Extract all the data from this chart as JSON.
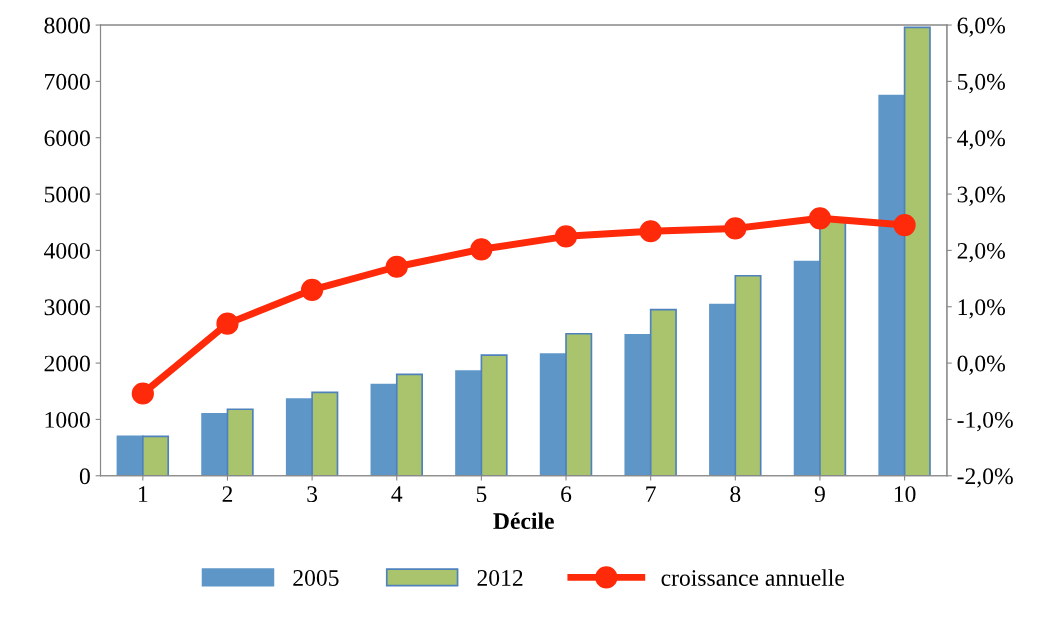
{
  "chart_data": {
    "type": "bar",
    "xlabel": "Décile",
    "categories": [
      "1",
      "2",
      "3",
      "4",
      "5",
      "6",
      "7",
      "8",
      "9",
      "10"
    ],
    "series": [
      {
        "name": "2005",
        "color": "#5f96c8",
        "values": [
          700,
          1100,
          1360,
          1620,
          1860,
          2160,
          2500,
          3040,
          3800,
          6750
        ]
      },
      {
        "name": "2012",
        "color": "#a9c46c",
        "values": [
          700,
          1180,
          1480,
          1800,
          2140,
          2520,
          2950,
          3550,
          4520,
          7960
        ]
      },
      {
        "name": "croissance annuelle",
        "type": "line",
        "axis": "y2",
        "color": "#ff2a0a",
        "marker": "circle",
        "values": [
          -0.54,
          0.7,
          1.3,
          1.71,
          2.02,
          2.25,
          2.34,
          2.39,
          2.57,
          2.45
        ]
      }
    ],
    "ylim": [
      0,
      8000
    ],
    "yticks": [
      0,
      1000,
      2000,
      3000,
      4000,
      5000,
      6000,
      7000,
      8000
    ],
    "y2lim": [
      -2,
      6
    ],
    "y2ticks": [
      {
        "value": -2,
        "label": "-2,0%"
      },
      {
        "value": -1,
        "label": "-1,0%"
      },
      {
        "value": 0,
        "label": "0,0%"
      },
      {
        "value": 1,
        "label": "1,0%"
      },
      {
        "value": 2,
        "label": "2,0%"
      },
      {
        "value": 3,
        "label": "3,0%"
      },
      {
        "value": 4,
        "label": "4,0%"
      },
      {
        "value": 5,
        "label": "5,0%"
      },
      {
        "value": 6,
        "label": "6,0%"
      }
    ],
    "grid": false,
    "legend": "bottom"
  }
}
